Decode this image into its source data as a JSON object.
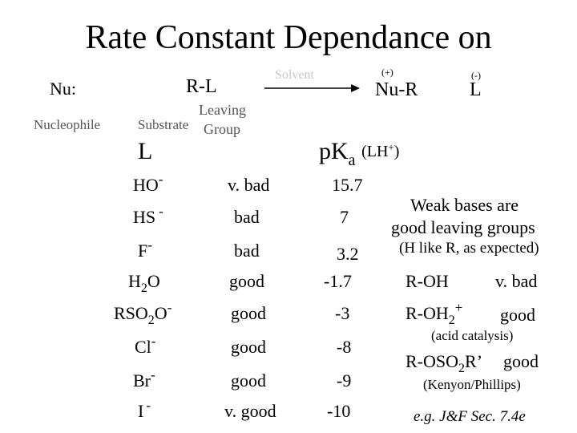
{
  "title": "Rate Constant Dependance on",
  "reaction": {
    "nu": "Nu:",
    "nucleophile": "Nucleophile",
    "rl": "R-L",
    "substrate": "Substrate",
    "leaving": "Leaving",
    "group": "Group",
    "solvent": "Solvent",
    "plus_charge": "(+)",
    "nur": "Nu-R",
    "minus_charge": "(-)",
    "l_product": "L"
  },
  "headers": {
    "l": "L",
    "pka_p": "p",
    "pka_k": "K",
    "pka_a": "a",
    "pka_lh": "(LH",
    "pka_plus": "+",
    "pka_close": ")"
  },
  "rows": [
    {
      "group": "HO",
      "charge": "-",
      "rating": "v. bad",
      "pka": "15.7"
    },
    {
      "group": "HS",
      "charge": "-",
      "rating": "bad",
      "pka": "7"
    },
    {
      "group": "F",
      "charge": "-",
      "rating": "bad",
      "pka": "3.2"
    },
    {
      "group": "H",
      "sub": "2",
      "group_tail": "O",
      "rating": "good",
      "pka": "-1.7"
    },
    {
      "group": "RSO",
      "sub": "2",
      "group_tail": "O",
      "charge": "-",
      "rating": "good",
      "pka": "-3"
    },
    {
      "group": "Cl",
      "charge": "-",
      "rating": "good",
      "pka": "-8"
    },
    {
      "group": "Br",
      "charge": "-",
      "rating": "good",
      "pka": "-9"
    },
    {
      "group": "I",
      "charge": "-",
      "rating": "v. good",
      "pka": "-10"
    }
  ],
  "notes": {
    "weak_bases_1": "Weak bases are",
    "weak_bases_2": "good leaving groups",
    "h_like_r": "(H like R, as expected)",
    "roh": "R-OH",
    "roh_rating": "v. bad",
    "roh2": "R-OH",
    "roh2_sub": "2",
    "roh2_plus": "+",
    "roh2_rating": "good",
    "acid": "(acid catalysis)",
    "roso2r": "R-OSO",
    "roso2r_sub": "2",
    "roso2r_tail": "R’",
    "roso2r_rating": "good",
    "kenyon": "(Kenyon/Phillips)",
    "eg": "e.g. J&F Sec. 7.4e"
  }
}
